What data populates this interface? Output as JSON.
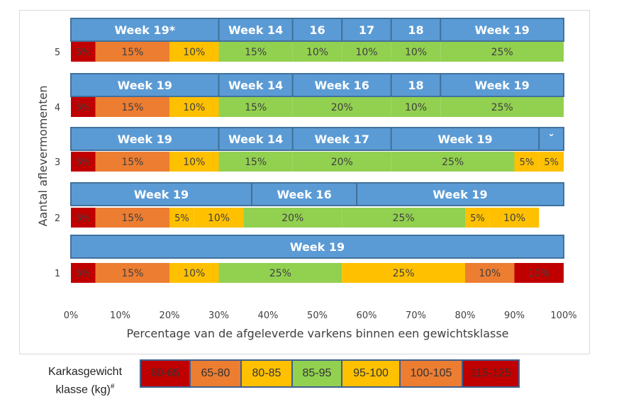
{
  "chart_data": {
    "type": "bar",
    "orientation": "horizontal-stacked",
    "xlabel": "Percentage van de afgeleverde varkens binnen een gewichtsklasse",
    "ylabel": "Aantal aflevermomenten",
    "xlim": [
      0,
      100
    ],
    "x_ticks": [
      "0%",
      "10%",
      "20%",
      "30%",
      "40%",
      "50%",
      "60%",
      "70%",
      "80%",
      "90%",
      "100%"
    ],
    "class_colors": {
      "60-65": "#c00000",
      "65-80": "#ed7d31",
      "80-85": "#ffc000",
      "85-95": "#92d050",
      "95-100": "#ffc000",
      "100-105": "#ed7d31",
      "115-125": "#c00000"
    },
    "week_color": "#5b9bd5",
    "rows": [
      {
        "label": "1",
        "segments": [
          {
            "value": 5,
            "label": "5%",
            "class": "60-65"
          },
          {
            "value": 15,
            "label": "15%",
            "class": "65-80"
          },
          {
            "value": 10,
            "label": "10%",
            "class": "80-85"
          },
          {
            "value": 25,
            "label": "25%",
            "class": "85-95"
          },
          {
            "value": 25,
            "label": "25%",
            "class": "95-100"
          },
          {
            "value": 10,
            "label": "10%",
            "class": "100-105"
          },
          {
            "value": 10,
            "label": "10%",
            "class": "115-125"
          }
        ],
        "weeks": [
          {
            "start": 0,
            "end": 100,
            "label": "Week 19"
          }
        ]
      },
      {
        "label": "2",
        "segments": [
          {
            "value": 5,
            "label": "5%",
            "class": "60-65"
          },
          {
            "value": 15,
            "label": "15%",
            "class": "65-80"
          },
          {
            "value": 5,
            "label": "5%",
            "class": "80-85"
          },
          {
            "value": 10,
            "label": "10%",
            "class": "80-85"
          },
          {
            "value": 20,
            "label": "20%",
            "class": "85-95"
          },
          {
            "value": 25,
            "label": "25%",
            "class": "85-95"
          },
          {
            "value": 5,
            "label": "5%",
            "class": "95-100"
          },
          {
            "value": 10,
            "label": "10%",
            "class": "95-100"
          }
        ],
        "weeks": [
          {
            "start": 0,
            "end": 36.7,
            "label": "Week 19"
          },
          {
            "start": 36.7,
            "end": 58,
            "label": "Week 16"
          },
          {
            "start": 58,
            "end": 100,
            "label": "Week 19"
          }
        ]
      },
      {
        "label": "3",
        "segments": [
          {
            "value": 5,
            "label": "5%",
            "class": "60-65"
          },
          {
            "value": 15,
            "label": "15%",
            "class": "65-80"
          },
          {
            "value": 10,
            "label": "10%",
            "class": "80-85"
          },
          {
            "value": 15,
            "label": "15%",
            "class": "85-95"
          },
          {
            "value": 20,
            "label": "20%",
            "class": "85-95"
          },
          {
            "value": 25,
            "label": "25%",
            "class": "85-95"
          },
          {
            "value": 5,
            "label": "5%",
            "class": "95-100"
          },
          {
            "value": 5,
            "label": "5%",
            "class": "95-100"
          }
        ],
        "weeks": [
          {
            "start": 0,
            "end": 30,
            "label": "Week 19"
          },
          {
            "start": 30,
            "end": 45,
            "label": "Week 14"
          },
          {
            "start": 45,
            "end": 65,
            "label": "Week 17"
          },
          {
            "start": 65,
            "end": 95,
            "label": "Week 19"
          },
          {
            "start": 95,
            "end": 100,
            "label": "ˇ"
          }
        ]
      },
      {
        "label": "4",
        "segments": [
          {
            "value": 5,
            "label": "5%",
            "class": "60-65"
          },
          {
            "value": 15,
            "label": "15%",
            "class": "65-80"
          },
          {
            "value": 10,
            "label": "10%",
            "class": "80-85"
          },
          {
            "value": 15,
            "label": "15%",
            "class": "85-95"
          },
          {
            "value": 20,
            "label": "20%",
            "class": "85-95"
          },
          {
            "value": 10,
            "label": "10%",
            "class": "85-95"
          },
          {
            "value": 25,
            "label": "25%",
            "class": "85-95"
          }
        ],
        "weeks": [
          {
            "start": 0,
            "end": 30,
            "label": "Week 19"
          },
          {
            "start": 30,
            "end": 45,
            "label": "Week 14"
          },
          {
            "start": 45,
            "end": 65,
            "label": "Week 16"
          },
          {
            "start": 65,
            "end": 75,
            "label": "18"
          },
          {
            "start": 75,
            "end": 100,
            "label": "Week 19"
          }
        ]
      },
      {
        "label": "5",
        "segments": [
          {
            "value": 5,
            "label": "5%",
            "class": "60-65"
          },
          {
            "value": 15,
            "label": "15%",
            "class": "65-80"
          },
          {
            "value": 10,
            "label": "10%",
            "class": "80-85"
          },
          {
            "value": 15,
            "label": "15%",
            "class": "85-95"
          },
          {
            "value": 10,
            "label": "10%",
            "class": "85-95"
          },
          {
            "value": 10,
            "label": "10%",
            "class": "85-95"
          },
          {
            "value": 10,
            "label": "10%",
            "class": "85-95"
          },
          {
            "value": 25,
            "label": "25%",
            "class": "85-95"
          }
        ],
        "weeks": [
          {
            "start": 0,
            "end": 30,
            "label": "Week 19*"
          },
          {
            "start": 30,
            "end": 45,
            "label": "Week 14"
          },
          {
            "start": 45,
            "end": 55,
            "label": "16"
          },
          {
            "start": 55,
            "end": 65,
            "label": "17"
          },
          {
            "start": 65,
            "end": 75,
            "label": "18"
          },
          {
            "start": 75,
            "end": 100,
            "label": "Week 19"
          }
        ]
      }
    ]
  },
  "legend": {
    "title_line1": "Karkasgewicht",
    "title_line2": "klasse (kg)",
    "title_mark": "#",
    "items": [
      {
        "label": "60-65",
        "color": "#c00000"
      },
      {
        "label": "65-80",
        "color": "#ed7d31"
      },
      {
        "label": "80-85",
        "color": "#ffc000"
      },
      {
        "label": "85-95",
        "color": "#92d050"
      },
      {
        "label": "95-100",
        "color": "#ffc000"
      },
      {
        "label": "100-105",
        "color": "#ed7d31"
      },
      {
        "label": "115-125",
        "color": "#c00000"
      }
    ]
  }
}
